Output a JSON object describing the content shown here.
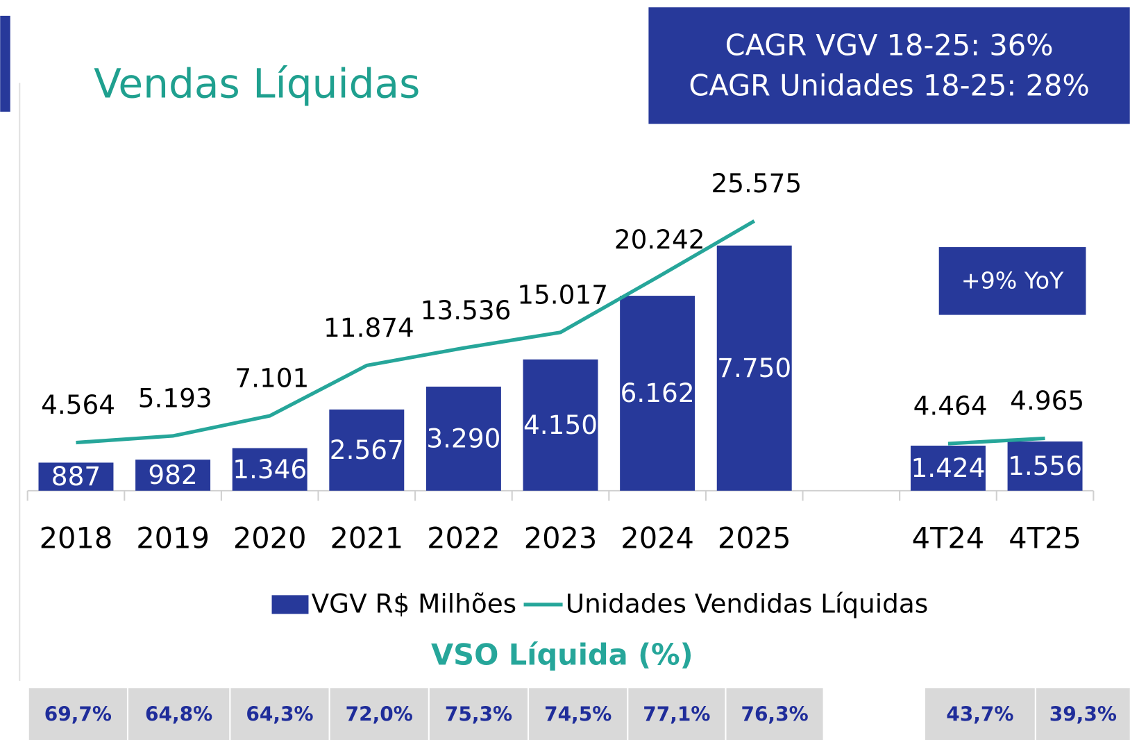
{
  "chart_data": {
    "type": "bar",
    "title": "Vendas Líquidas",
    "annotations": [
      "CAGR VGV 18-25: 36%",
      "CAGR Unidades 18-25: 28%",
      "+9% YoY"
    ],
    "categories": [
      "2018",
      "2019",
      "2020",
      "2021",
      "2022",
      "2023",
      "2024",
      "2025",
      null,
      "4T24",
      "4T25"
    ],
    "series": [
      {
        "name": "VGV R$ Milhões",
        "type": "bar",
        "color": "#27399a",
        "values": [
          887,
          982,
          1346,
          2567,
          3290,
          4150,
          6162,
          7750,
          null,
          1424,
          1556
        ],
        "value_labels": [
          "887",
          "982",
          "1.346",
          "2.567",
          "3.290",
          "4.150",
          "6.162",
          "7.750",
          null,
          "1.424",
          "1.556"
        ]
      },
      {
        "name": "Unidades Vendidas Líquidas",
        "type": "line",
        "axis": "y2",
        "color": "#26a69a",
        "values": [
          4564,
          5193,
          7101,
          11874,
          13536,
          15017,
          20242,
          25575,
          null,
          4464,
          4965
        ],
        "value_labels": [
          "4.564",
          "5.193",
          "7.101",
          "11.874",
          "13.536",
          "15.017",
          "20.242",
          "25.575",
          null,
          "4.464",
          "4.965"
        ]
      }
    ],
    "ylim": [
      0,
      10000
    ],
    "y2lim": [
      0,
      30000
    ],
    "legend": "bottom",
    "vso_title": "VSO  Líquida (%)",
    "vso_labels": [
      "69,7%",
      "64,8%",
      "64,3%",
      "72,0%",
      "75,3%",
      "74,5%",
      "77,1%",
      "76,3%",
      null,
      "43,7%",
      "39,3%"
    ]
  }
}
